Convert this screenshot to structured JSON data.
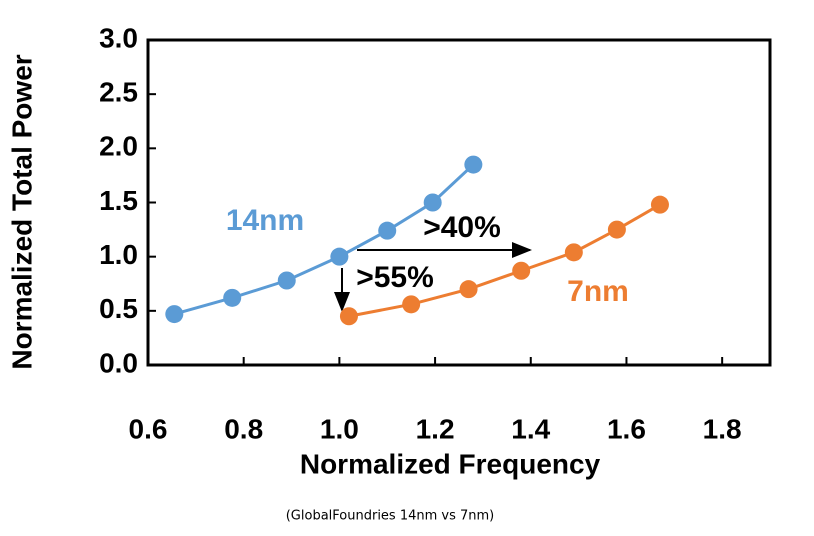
{
  "chart_data": {
    "type": "line",
    "x_label": "Normalized Frequency",
    "y_label": "Normalized Total Power",
    "xlim": [
      0.6,
      1.9
    ],
    "ylim": [
      0,
      3
    ],
    "xticks": [
      0.6,
      0.8,
      {
        "value": 1,
        "label": "1.0"
      },
      1.2,
      1.4,
      1.6,
      1.8
    ],
    "yticks": [
      {
        "value": 0,
        "label": "0.0"
      },
      0.5,
      {
        "value": 1,
        "label": "1.0"
      },
      1.5,
      {
        "value": 2,
        "label": "2.0"
      },
      2.5,
      {
        "value": 3,
        "label": "3.0"
      }
    ],
    "series": [
      {
        "name": "14nm",
        "color": "#5b9bd5",
        "x": [
          0.655,
          0.776,
          0.89,
          1.0,
          1.1,
          1.195,
          1.28
        ],
        "values": [
          0.47,
          0.62,
          0.78,
          1.0,
          1.24,
          1.5,
          1.85
        ]
      },
      {
        "name": "7nm",
        "color": "#ed7d31",
        "x": [
          1.02,
          1.15,
          1.27,
          1.38,
          1.49,
          1.58,
          1.67
        ],
        "values": [
          0.45,
          0.56,
          0.7,
          0.87,
          1.04,
          1.25,
          1.48
        ]
      }
    ],
    "annotations": [
      ">40%",
      ">55%"
    ],
    "caption": "(GlobalFoundries 14nm vs 7nm)"
  }
}
